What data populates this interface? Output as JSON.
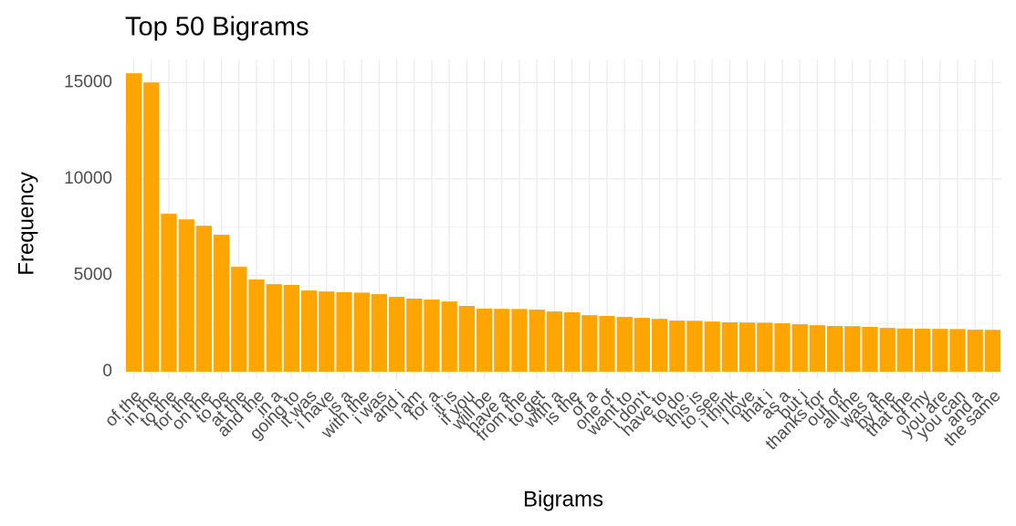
{
  "chart_data": {
    "type": "bar",
    "title": "Top 50 Bigrams",
    "x_label": "Bigrams",
    "y_label": "Frequency",
    "categories": [
      "of the",
      "in the",
      "to the",
      "for the",
      "on the",
      "to be",
      "at the",
      "and the",
      "in a",
      "going to",
      "it was",
      "i have",
      "is a",
      "with the",
      "i was",
      "and i",
      "i am",
      "for a",
      "it is",
      "if you",
      "will be",
      "have a",
      "from the",
      "to get",
      "with a",
      "is the",
      "of a",
      "one of",
      "want to",
      "i don't",
      "have to",
      "to do",
      "this is",
      "to see",
      "i think",
      "i love",
      "that i",
      "as a",
      "but i",
      "thanks for",
      "out of",
      "all the",
      "was a",
      "by the",
      "that the",
      "of my",
      "you are",
      "you can",
      "and a",
      "the same"
    ],
    "values": [
      15480,
      15000,
      8190,
      7900,
      7570,
      7100,
      5440,
      4780,
      4540,
      4500,
      4210,
      4160,
      4120,
      4100,
      4020,
      3880,
      3790,
      3740,
      3640,
      3410,
      3270,
      3260,
      3250,
      3220,
      3120,
      3080,
      2930,
      2890,
      2840,
      2790,
      2740,
      2650,
      2640,
      2600,
      2560,
      2550,
      2540,
      2510,
      2460,
      2410,
      2370,
      2360,
      2320,
      2270,
      2240,
      2230,
      2220,
      2210,
      2180,
      2170
    ],
    "color": "#ffa500",
    "ylim": [
      0,
      16200
    ],
    "yticks": [
      0,
      5000,
      10000,
      15000
    ],
    "grid": true
  }
}
